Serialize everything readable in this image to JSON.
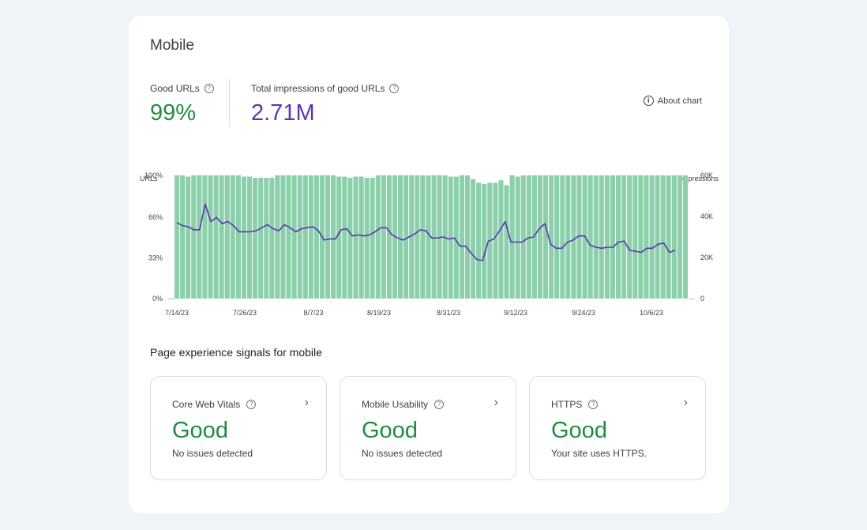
{
  "card": {
    "title": "Mobile"
  },
  "metrics": {
    "good_urls": {
      "label": "Good URLs",
      "value": "99%"
    },
    "impressions": {
      "label": "Total impressions of good URLs",
      "value": "2.71M"
    }
  },
  "about_chart": {
    "label": "About chart",
    "icon": "info-icon"
  },
  "chart_data": {
    "type": "bar",
    "left_axis_title": "URLs",
    "right_axis_title": "Impressions",
    "left_ticks": [
      "0%",
      "33%",
      "66%",
      "100%"
    ],
    "right_ticks": [
      "0",
      "20K",
      "40K",
      "60K"
    ],
    "x_ticks": [
      "7/14/23",
      "7/26/23",
      "8/7/23",
      "8/19/23",
      "8/31/23",
      "9/12/23",
      "9/24/23",
      "10/6/23"
    ],
    "ylim_left": [
      0,
      100
    ],
    "ylim_right": [
      0,
      60000
    ],
    "bar_color": "#8bcfab",
    "line_color": "#5e35b1",
    "series": [
      {
        "values": [
          100,
          100,
          99,
          100,
          100,
          100,
          100,
          100,
          100,
          100,
          100,
          100,
          99,
          99,
          98,
          98,
          98,
          98,
          100,
          100,
          100,
          100,
          100,
          100,
          100,
          100,
          100,
          100,
          100,
          99,
          99,
          98,
          99,
          99,
          98,
          98,
          100,
          100,
          100,
          100,
          100,
          100,
          100,
          100,
          100,
          100,
          100,
          100,
          100,
          99,
          99,
          100,
          100,
          97,
          94,
          93,
          94,
          94,
          96,
          92,
          100,
          99,
          100,
          100,
          100,
          100,
          100,
          100,
          100,
          100,
          100,
          100,
          100,
          100,
          100,
          100,
          100,
          100,
          100,
          100,
          100,
          100,
          100,
          100,
          100,
          100,
          100,
          100,
          100,
          100,
          100,
          100
        ]
      },
      {
        "values": [
          37000,
          35500,
          35000,
          33500,
          33500,
          46000,
          37500,
          39500,
          36500,
          37500,
          35500,
          32500,
          32500,
          32500,
          33000,
          34500,
          36000,
          34000,
          33000,
          36000,
          34500,
          32500,
          34000,
          34500,
          35000,
          33000,
          28500,
          29000,
          29000,
          33500,
          34000,
          30500,
          31000,
          30500,
          31000,
          32500,
          34500,
          34500,
          31000,
          29500,
          28500,
          30000,
          31500,
          33500,
          33000,
          29500,
          29500,
          30000,
          29000,
          29500,
          25500,
          25500,
          22000,
          19000,
          18500,
          28000,
          29000,
          33000,
          37500,
          27500,
          27500,
          27500,
          29500,
          30000,
          34000,
          36500,
          26500,
          24500,
          24500,
          27500,
          28500,
          30500,
          30500,
          26000,
          25000,
          24500,
          25000,
          25000,
          27500,
          28000,
          23500,
          23000,
          22500,
          24500,
          24500,
          26500,
          27000,
          22500,
          23500
        ]
      }
    ]
  },
  "signals": {
    "title": "Page experience signals for mobile",
    "cards": [
      {
        "label": "Core Web Vitals",
        "value": "Good",
        "sub": "No issues detected"
      },
      {
        "label": "Mobile Usability",
        "value": "Good",
        "sub": "No issues detected"
      },
      {
        "label": "HTTPS",
        "value": "Good",
        "sub": "Your site uses HTTPS."
      }
    ]
  }
}
